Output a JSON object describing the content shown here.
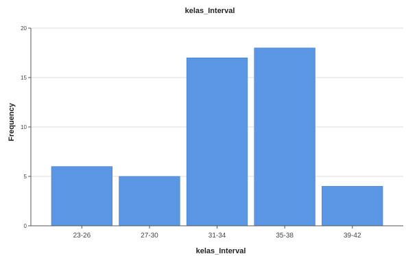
{
  "chart_data": {
    "type": "bar",
    "title": "kelas_Interval",
    "xlabel": "kelas_Interval",
    "ylabel": "Frequency",
    "categories": [
      "23-26",
      "27-30",
      "31-34",
      "35-38",
      "39-42"
    ],
    "values": [
      6,
      5,
      17,
      18,
      4
    ],
    "ylim": [
      0,
      20
    ],
    "yticks": [
      0,
      5,
      10,
      15,
      20
    ],
    "grid": true,
    "bar_color": "#5a96e3",
    "bar_edge_color": "#4a7fc4",
    "grid_color": "#dcdcdc",
    "axis_color": "#555555"
  }
}
